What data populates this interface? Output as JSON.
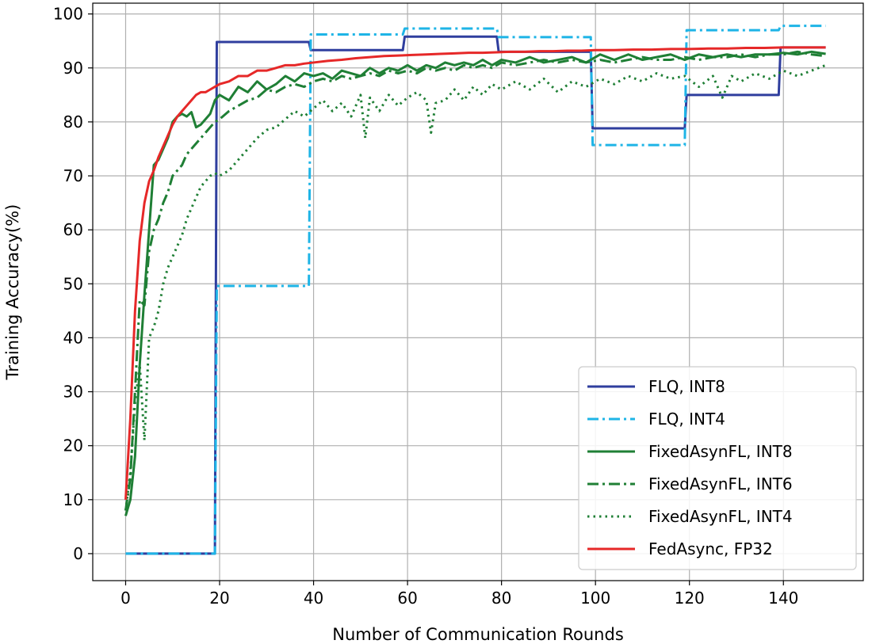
{
  "chart_data": {
    "type": "line",
    "title": "",
    "xlabel": "Number of Communication Rounds",
    "ylabel": "Training Accuracy(%)",
    "xlim": [
      -7,
      157
    ],
    "ylim": [
      -5,
      102
    ],
    "xticks": [
      0,
      20,
      40,
      60,
      80,
      100,
      120,
      140
    ],
    "yticks": [
      0,
      10,
      20,
      30,
      40,
      50,
      60,
      70,
      80,
      90,
      100
    ],
    "grid": true,
    "legend_position": "lower right",
    "series": [
      {
        "name": "FLQ, INT8",
        "color": "#2f3e9e",
        "dash": "solid",
        "x": [
          0,
          19,
          19.4,
          39,
          39.4,
          59,
          59.4,
          79,
          79.4,
          99,
          99.4,
          119,
          119.4,
          139,
          139.4,
          149
        ],
        "y": [
          0,
          0,
          94.8,
          94.8,
          93.3,
          93.3,
          95.8,
          95.8,
          93.0,
          93.0,
          78.8,
          78.8,
          85.0,
          85.0,
          93.8,
          93.8
        ]
      },
      {
        "name": "FLQ, INT4",
        "color": "#1eb4e6",
        "dash": "dashdot",
        "x": [
          0,
          19,
          19.4,
          39,
          39.4,
          59,
          59.4,
          79,
          79.4,
          99,
          99.4,
          119,
          119.4,
          139,
          139.4,
          149
        ],
        "y": [
          0,
          0,
          49.6,
          49.6,
          96.2,
          96.2,
          97.3,
          97.3,
          95.7,
          95.7,
          75.7,
          75.7,
          97.0,
          97.0,
          97.8,
          97.8
        ]
      },
      {
        "name": "FixedAsynFL, INT8",
        "color": "#1f7f35",
        "dash": "solid",
        "x": [
          0,
          1,
          2,
          3,
          4,
          5,
          6,
          7,
          8,
          9,
          10,
          11,
          12,
          13,
          14,
          15,
          16,
          17,
          18,
          19,
          20,
          22,
          24,
          26,
          28,
          30,
          32,
          34,
          36,
          38,
          40,
          42,
          44,
          46,
          48,
          50,
          52,
          54,
          56,
          58,
          60,
          62,
          64,
          66,
          68,
          70,
          72,
          74,
          76,
          78,
          80,
          83,
          86,
          89,
          92,
          95,
          98,
          101,
          104,
          107,
          110,
          113,
          116,
          119,
          122,
          125,
          128,
          131,
          134,
          137,
          140,
          143,
          146,
          149
        ],
        "y": [
          7,
          10,
          18,
          35,
          48,
          60,
          72,
          73,
          75,
          77,
          80,
          81,
          81.5,
          81,
          81.8,
          79,
          79.5,
          80.5,
          81.5,
          84,
          85,
          84,
          86.5,
          85.5,
          87.5,
          86,
          87,
          88.5,
          87.5,
          89,
          88.5,
          89,
          88,
          89.5,
          89,
          88.5,
          90,
          89,
          90,
          89.5,
          90.5,
          89.5,
          90.5,
          90,
          91,
          90.5,
          91,
          90.5,
          91.5,
          90.5,
          91.5,
          91,
          92,
          91,
          91.5,
          92,
          91,
          92.5,
          91.5,
          92.5,
          91.5,
          92,
          92.5,
          91.5,
          92.5,
          92,
          92.5,
          92,
          92.5,
          92.5,
          92.8,
          92.5,
          93,
          92.6
        ]
      },
      {
        "name": "FixedAsynFL, INT6",
        "color": "#1f7f35",
        "dash": "dashdot",
        "x": [
          0,
          1,
          2,
          3,
          4,
          5,
          6,
          7,
          8,
          9,
          10,
          11,
          12,
          13,
          14,
          15,
          16,
          17,
          18,
          19,
          20,
          22,
          24,
          26,
          28,
          30,
          32,
          34,
          36,
          38,
          40,
          42,
          44,
          46,
          48,
          50,
          52,
          54,
          56,
          58,
          60,
          62,
          64,
          66,
          68,
          70,
          72,
          74,
          76,
          78,
          80,
          83,
          86,
          89,
          92,
          95,
          98,
          101,
          104,
          107,
          110,
          113,
          116,
          119,
          122,
          125,
          128,
          131,
          134,
          137,
          140,
          143,
          146,
          149
        ],
        "y": [
          8,
          14,
          30,
          47,
          46,
          56,
          60,
          62,
          65,
          67,
          70,
          71,
          72,
          74,
          75,
          76,
          77,
          78,
          79,
          80,
          80.5,
          82,
          83,
          84,
          84.5,
          86,
          85.5,
          86.5,
          87,
          86.5,
          87.5,
          88,
          87.5,
          88.5,
          88,
          88.5,
          89,
          88.5,
          89.5,
          89,
          89.5,
          89,
          90,
          89.5,
          90,
          89.5,
          90.5,
          90,
          90.5,
          90,
          91,
          90.5,
          91,
          91.5,
          91,
          91.5,
          91,
          91.5,
          91,
          91.5,
          92,
          91.5,
          91.5,
          92,
          91.5,
          92,
          92,
          92.5,
          92,
          92.5,
          92.5,
          93,
          92.5,
          92.2
        ]
      },
      {
        "name": "FixedAsynFL, INT4",
        "color": "#1f7f35",
        "dash": "dotted",
        "x": [
          0,
          1,
          2,
          3,
          4,
          5,
          6,
          7,
          8,
          9,
          10,
          11,
          12,
          13,
          14,
          15,
          16,
          17,
          18,
          19,
          20,
          22,
          24,
          26,
          28,
          30,
          32,
          34,
          36,
          38,
          40,
          42,
          44,
          46,
          48,
          50,
          51,
          52,
          54,
          56,
          58,
          60,
          62,
          64,
          65,
          66,
          68,
          70,
          72,
          74,
          76,
          78,
          80,
          83,
          86,
          89,
          92,
          95,
          98,
          101,
          104,
          107,
          110,
          113,
          116,
          119,
          122,
          125,
          127,
          129,
          131,
          134,
          137,
          140,
          143,
          146,
          149
        ],
        "y": [
          8,
          15,
          28,
          35,
          21,
          40,
          42,
          45,
          50,
          53,
          55,
          57,
          59,
          62,
          64,
          66,
          68,
          69,
          70,
          70.5,
          70,
          71,
          73,
          75,
          77,
          78.5,
          79,
          80.5,
          82,
          81,
          82.5,
          84,
          82,
          83.5,
          81,
          85,
          77,
          84.5,
          82,
          85,
          83,
          84.5,
          85.5,
          84,
          78,
          83.5,
          84,
          86,
          84,
          86.5,
          85,
          87,
          86,
          87.5,
          86,
          88,
          85.5,
          87.5,
          86.5,
          88,
          87,
          88.5,
          87.5,
          89,
          88,
          88.5,
          86.5,
          88.5,
          84.5,
          88.5,
          87.5,
          89,
          88,
          89.5,
          88.5,
          89.5,
          90.5
        ]
      },
      {
        "name": "FedAsync, FP32",
        "color": "#e62828",
        "dash": "solid",
        "x": [
          0,
          1,
          2,
          3,
          4,
          5,
          6,
          7,
          8,
          9,
          10,
          11,
          12,
          13,
          14,
          15,
          16,
          17,
          18,
          19,
          20,
          22,
          24,
          26,
          28,
          30,
          32,
          34,
          36,
          38,
          40,
          43,
          46,
          49,
          52,
          55,
          58,
          61,
          64,
          67,
          70,
          73,
          76,
          79,
          82,
          85,
          88,
          91,
          94,
          97,
          100,
          104,
          108,
          112,
          116,
          120,
          124,
          128,
          132,
          136,
          140,
          144,
          149
        ],
        "y": [
          10,
          25,
          45,
          58,
          65,
          69,
          71,
          73.5,
          75.5,
          77.5,
          79.5,
          81,
          82,
          83,
          84,
          85,
          85.5,
          85.5,
          86,
          86.5,
          87,
          87.5,
          88.5,
          88.5,
          89.5,
          89.5,
          90,
          90.5,
          90.5,
          90.8,
          91,
          91.3,
          91.5,
          91.8,
          92,
          92.2,
          92.3,
          92.4,
          92.5,
          92.6,
          92.7,
          92.8,
          92.8,
          92.9,
          93,
          93,
          93.1,
          93.1,
          93.2,
          93.2,
          93.3,
          93.3,
          93.4,
          93.4,
          93.5,
          93.5,
          93.6,
          93.6,
          93.7,
          93.7,
          93.8,
          93.8,
          93.8
        ]
      }
    ]
  }
}
